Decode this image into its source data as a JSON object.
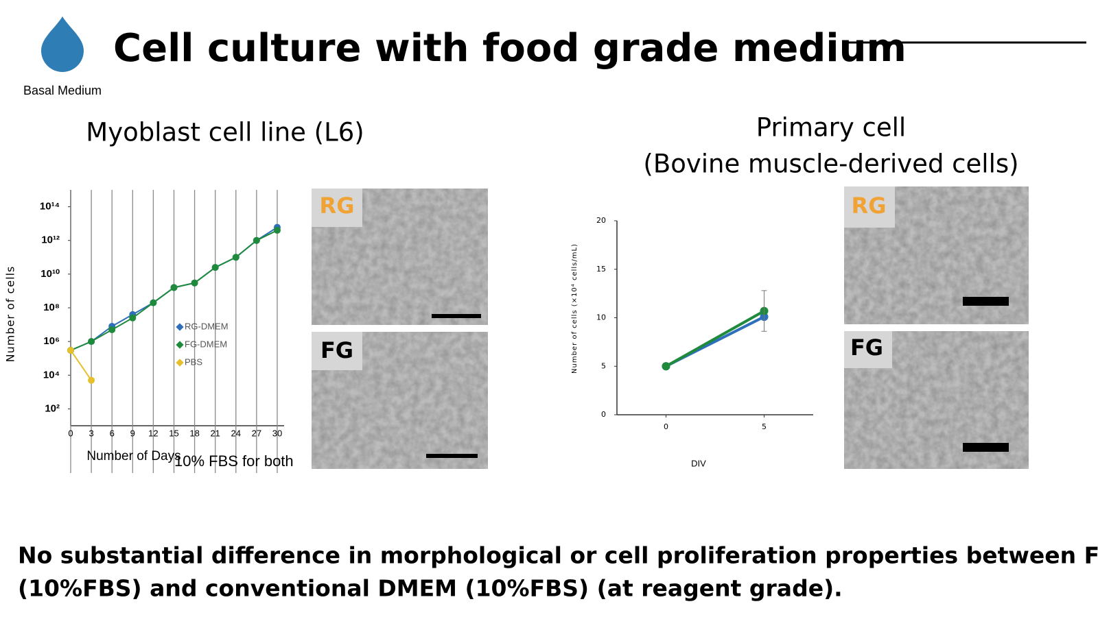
{
  "header": {
    "title": "Cell culture with food grade medium",
    "icon_label": "Basal Medium"
  },
  "panels": [
    {
      "title_lines": [
        "Myoblast cell line (L6)"
      ],
      "images": [
        {
          "label": "RG"
        },
        {
          "label": "FG"
        }
      ]
    },
    {
      "title_lines": [
        "Primary cell",
        "(Bovine muscle-derived cells)"
      ],
      "images": [
        {
          "label": "RG"
        },
        {
          "label": "FG"
        }
      ]
    }
  ],
  "chart_data": [
    {
      "type": "line",
      "y_label": "Number of cells",
      "x_label": "Number of Days",
      "annotation": "10% FBS for both",
      "log_y": true,
      "grid_x": true,
      "legend": "center-right",
      "x": [
        0,
        3,
        6,
        9,
        12,
        15,
        18,
        21,
        24,
        27,
        30
      ],
      "xlim": [
        0,
        31
      ],
      "xticks": [
        0,
        3,
        6,
        9,
        12,
        15,
        18,
        21,
        24,
        27,
        30
      ],
      "ylim": [
        10.0,
        1000000000000000.0
      ],
      "yticks": [
        {
          "value": 100.0,
          "label": "10²"
        },
        {
          "value": 10000.0,
          "label": "10⁴"
        },
        {
          "value": 1000000.0,
          "label": "10⁶"
        },
        {
          "value": 100000000.0,
          "label": "10⁸"
        },
        {
          "value": 10000000000.0,
          "label": "10¹⁰"
        },
        {
          "value": 1000000000000.0,
          "label": "10¹²"
        },
        {
          "value": 100000000000000.0,
          "label": "10¹⁴"
        }
      ],
      "series": [
        {
          "name": "RG-DMEM",
          "color": "#2e6fba",
          "values": [
            300000.0,
            1000000.0,
            8000000.0,
            40000000.0,
            200000000.0,
            1600000000.0,
            3000000000.0,
            25000000000.0,
            100000000000.0,
            1000000000000.0,
            6000000000000.0
          ]
        },
        {
          "name": "FG-DMEM",
          "color": "#1f8a3c",
          "values": [
            300000.0,
            1000000.0,
            5000000.0,
            25000000.0,
            200000000.0,
            1600000000.0,
            3000000000.0,
            25000000000.0,
            100000000000.0,
            1000000000000.0,
            4000000000000.0
          ]
        },
        {
          "name": "PBS",
          "color": "#e6c02c",
          "values": [
            300000.0,
            5000.0,
            null,
            null,
            null,
            null,
            null,
            null,
            null,
            null,
            null
          ]
        }
      ]
    },
    {
      "type": "line",
      "y_label": "Number of cells (×10⁴ cells/mL)",
      "x_label": "DIV",
      "x": [
        0,
        5
      ],
      "xlim": [
        -2.5,
        7.5
      ],
      "xticks": [
        0,
        5
      ],
      "ylim": [
        0,
        20
      ],
      "yticks": [
        0,
        5,
        10,
        15,
        20
      ],
      "series": [
        {
          "color": "#2e6fba",
          "values": [
            5,
            10.1
          ]
        },
        {
          "color": "#1f8a3c",
          "values": [
            5,
            10.7
          ],
          "errors": [
            null,
            2.1
          ]
        }
      ]
    }
  ],
  "conclusion": [
    "No substantial difference in morphological or cell proliferation properties between FG-DMEM",
    "(10%FBS) and conventional DMEM (10%FBS) (at reagent grade)."
  ]
}
